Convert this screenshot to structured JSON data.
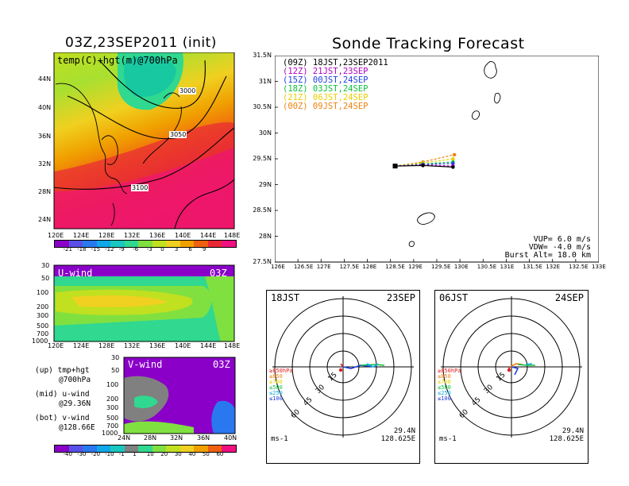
{
  "left": {
    "title": "03Z,23SEP2011 (init)",
    "top_panel": {
      "label": "temp(C)+hgt(m)@700hPa",
      "y_ticks": [
        "44N",
        "40N",
        "36N",
        "32N",
        "28N",
        "24N"
      ],
      "x_ticks": [
        "120E",
        "124E",
        "128E",
        "132E",
        "136E",
        "140E",
        "144E",
        "148E"
      ],
      "contour_labels": [
        "3000",
        "3050",
        "3100"
      ],
      "colorbar": {
        "labels": [
          "-21",
          "-18",
          "-15",
          "-12",
          "-9",
          "-6",
          "-3",
          "0",
          "3",
          "6",
          "9"
        ],
        "colors": [
          "#8a00c8",
          "#5a50e8",
          "#2a78f0",
          "#10a8e8",
          "#18c8c0",
          "#30d890",
          "#80e040",
          "#c0e020",
          "#f0d020",
          "#f0a000",
          "#f06010",
          "#e82838",
          "#f01080"
        ]
      }
    },
    "u_panel": {
      "label": "U-wind",
      "time": "03Z",
      "y_ticks": [
        "30",
        "50",
        "100",
        "200",
        "300",
        "500",
        "700",
        "1000"
      ],
      "x_ticks": [
        "120E",
        "124E",
        "128E",
        "132E",
        "136E",
        "140E",
        "144E",
        "148E"
      ]
    },
    "v_panel": {
      "label": "V-wind",
      "time": "03Z",
      "y_ticks": [
        "30",
        "50",
        "100",
        "200",
        "300",
        "500",
        "700",
        "1000"
      ],
      "x_ticks": [
        "24N",
        "28N",
        "32N",
        "36N",
        "40N"
      ]
    },
    "legend_notes": [
      {
        "a": "(up) tmp+hgt",
        "b": "@700hPa"
      },
      {
        "a": "(mid) u-wind",
        "b": "@29.36N"
      },
      {
        "a": "(bot) v-wind",
        "b": "@128.66E"
      }
    ],
    "wind_colorbar": {
      "labels": [
        "-40",
        "-30",
        "-20",
        "-10",
        "-1",
        "1",
        "10",
        "20",
        "30",
        "40",
        "50",
        "60"
      ],
      "colors": [
        "#8a00c8",
        "#5a50e8",
        "#2a78f0",
        "#10a8e8",
        "#18c8c0",
        "#808080",
        "#30d890",
        "#80e040",
        "#c0e020",
        "#f0d020",
        "#f0a000",
        "#f06010",
        "#f01080"
      ]
    }
  },
  "right": {
    "title": "Sonde Tracking Forecast",
    "legend": [
      {
        "text": "(09Z) 18JST,23SEP2011",
        "color": "#000000"
      },
      {
        "text": "(12Z) 21JST,23SEP",
        "color": "#b000c0"
      },
      {
        "text": "(15Z) 00JST,24SEP",
        "color": "#2040e0"
      },
      {
        "text": "(18Z) 03JST,24SEP",
        "color": "#10c040"
      },
      {
        "text": "(21Z) 06JST,24SEP",
        "color": "#e8d000"
      },
      {
        "text": "(00Z) 09JST,24SEP",
        "color": "#f08010"
      }
    ],
    "y_ticks": [
      "31.5N",
      "31N",
      "30.5N",
      "30N",
      "29.5N",
      "29N",
      "28.5N",
      "28N",
      "27.5N"
    ],
    "x_ticks": [
      "126E",
      "126.5E",
      "127E",
      "127.5E",
      "128E",
      "128.5E",
      "129E",
      "129.5E",
      "130E",
      "130.5E",
      "131E",
      "131.5E",
      "132E",
      "132.5E",
      "133E"
    ],
    "params": [
      "VUP= 6.0 m/s",
      "VDW= -4.0 m/s",
      "Burst Alt= 18.0 km"
    ]
  },
  "chart_data": {
    "type": "line",
    "title": "Sonde Tracking Forecast",
    "xlim": [
      126,
      133
    ],
    "ylim": [
      27.5,
      31.5
    ],
    "series": [
      {
        "name": "(09Z) 18JST,23SEP2011",
        "color": "#000000",
        "x": [
          128.6,
          129.2,
          129.85
        ],
        "y": [
          29.36,
          29.37,
          29.34
        ]
      },
      {
        "name": "(12Z) 21JST,23SEP",
        "color": "#b000c0",
        "x": [
          128.6,
          129.2,
          129.85
        ],
        "y": [
          29.36,
          29.38,
          29.36
        ]
      },
      {
        "name": "(15Z) 00JST,24SEP",
        "color": "#2040e0",
        "x": [
          128.6,
          129.2,
          129.85
        ],
        "y": [
          29.36,
          29.39,
          29.41
        ]
      },
      {
        "name": "(18Z) 03JST,24SEP",
        "color": "#10c040",
        "x": [
          128.6,
          129.2,
          129.85
        ],
        "y": [
          29.36,
          29.4,
          29.44
        ]
      },
      {
        "name": "(21Z) 06JST,24SEP",
        "color": "#e8d000",
        "x": [
          128.6,
          129.2,
          129.85
        ],
        "y": [
          29.36,
          29.42,
          29.5
        ]
      },
      {
        "name": "(00Z) 09JST,24SEP",
        "color": "#f08010",
        "x": [
          128.6,
          129.2,
          129.88
        ],
        "y": [
          29.36,
          29.44,
          29.58
        ]
      }
    ]
  },
  "hodographs": [
    {
      "time_label": "18JST",
      "date_label": "23SEP",
      "ring_labels": [
        "15",
        "30",
        "45",
        "60"
      ],
      "levels": [
        {
          "text": "≥850hPa",
          "color": "#e02020"
        },
        {
          "text": "≤850",
          "color": "#f08010"
        },
        {
          "text": "≤700",
          "color": "#e8d000"
        },
        {
          "text": "≤500",
          "color": "#10c040"
        },
        {
          "text": "≤250",
          "color": "#10b0e0"
        },
        {
          "text": "≤100",
          "color": "#2040e0"
        }
      ],
      "unit": "ms-1",
      "lat": "29.4N",
      "lon": "128.625E"
    },
    {
      "time_label": "06JST",
      "date_label": "24SEP",
      "ring_labels": [
        "15",
        "30",
        "45",
        "60"
      ],
      "levels": [
        {
          "text": "≥850hPa",
          "color": "#e02020"
        },
        {
          "text": "≤850",
          "color": "#f08010"
        },
        {
          "text": "≤700",
          "color": "#e8d000"
        },
        {
          "text": "≤500",
          "color": "#10c040"
        },
        {
          "text": "≤250",
          "color": "#10b0e0"
        },
        {
          "text": "≤100",
          "color": "#2040e0"
        }
      ],
      "unit": "ms-1",
      "lat": "29.4N",
      "lon": "128.625E"
    }
  ]
}
